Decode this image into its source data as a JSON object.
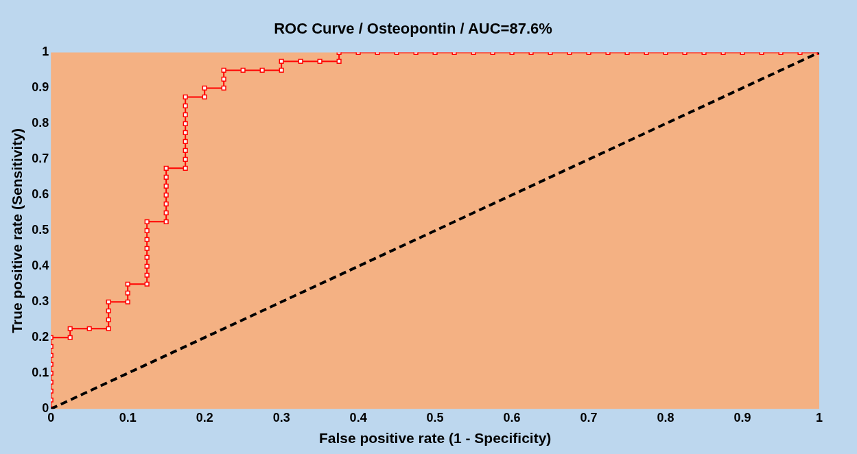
{
  "chart_data": {
    "type": "line",
    "title": "ROC Curve / Osteopontin / AUC=87.6%",
    "xlabel": "False positive rate (1 - Specificity)",
    "ylabel": "True positive rate (Sensitivity)",
    "xlim": [
      0,
      1
    ],
    "ylim": [
      0,
      1
    ],
    "xticks": [
      0,
      0.1,
      0.2,
      0.3,
      0.4,
      0.5,
      0.6,
      0.7,
      0.8,
      0.9,
      1
    ],
    "yticks": [
      0,
      0.1,
      0.2,
      0.3,
      0.4,
      0.5,
      0.6,
      0.7,
      0.8,
      0.9,
      1
    ],
    "grid": false,
    "legend": false,
    "series": [
      {
        "color": "#ff0000",
        "marker": "square",
        "line_style": "solid",
        "x": [
          0,
          0,
          0,
          0,
          0,
          0,
          0,
          0,
          0,
          0.025,
          0.025,
          0.05,
          0.075,
          0.075,
          0.075,
          0.075,
          0.1,
          0.1,
          0.1,
          0.125,
          0.125,
          0.125,
          0.125,
          0.125,
          0.125,
          0.125,
          0.125,
          0.15,
          0.15,
          0.15,
          0.15,
          0.15,
          0.15,
          0.15,
          0.175,
          0.175,
          0.175,
          0.175,
          0.175,
          0.175,
          0.175,
          0.175,
          0.175,
          0.2,
          0.2,
          0.225,
          0.225,
          0.225,
          0.25,
          0.275,
          0.3,
          0.3,
          0.325,
          0.35,
          0.375,
          0.375,
          0.4,
          0.425,
          0.45,
          0.475,
          0.5,
          0.525,
          0.55,
          0.575,
          0.6,
          0.625,
          0.65,
          0.675,
          0.7,
          0.725,
          0.75,
          0.775,
          0.8,
          0.825,
          0.85,
          0.875,
          0.9,
          0.925,
          0.95,
          0.975,
          1
        ],
        "values": [
          0,
          0.025,
          0.05,
          0.075,
          0.1,
          0.125,
          0.15,
          0.175,
          0.2,
          0.2,
          0.225,
          0.225,
          0.225,
          0.25,
          0.275,
          0.3,
          0.3,
          0.325,
          0.35,
          0.35,
          0.375,
          0.4,
          0.425,
          0.45,
          0.475,
          0.5,
          0.525,
          0.525,
          0.55,
          0.575,
          0.6,
          0.625,
          0.65,
          0.675,
          0.675,
          0.7,
          0.725,
          0.75,
          0.775,
          0.8,
          0.825,
          0.85,
          0.875,
          0.875,
          0.9,
          0.9,
          0.925,
          0.95,
          0.95,
          0.95,
          0.95,
          0.975,
          0.975,
          0.975,
          0.975,
          1,
          1,
          1,
          1,
          1,
          1,
          1,
          1,
          1,
          1,
          1,
          1,
          1,
          1,
          1,
          1,
          1,
          1,
          1,
          1,
          1,
          1,
          1,
          1,
          1,
          1
        ]
      },
      {
        "color": "#000000",
        "marker": "none",
        "line_style": "dashed",
        "x": [
          0,
          1
        ],
        "values": [
          0,
          1
        ]
      }
    ]
  }
}
